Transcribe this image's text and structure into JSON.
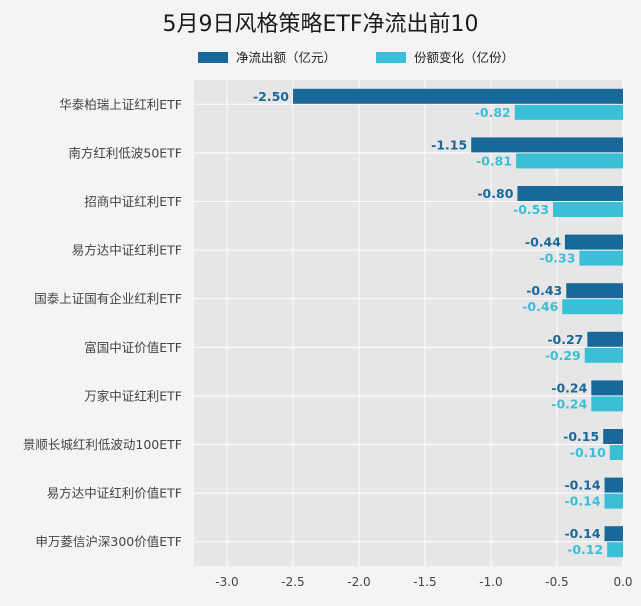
{
  "colors": {
    "net_outflow": "#18699a",
    "share_change": "#3bbfd6",
    "plot_bg": "#e6e6e6",
    "grid": "#ffffff"
  },
  "chart_data": {
    "type": "bar",
    "orientation": "horizontal",
    "title": "5月9日风格策略ETF净流出前10",
    "categories": [
      "华泰柏瑞上证红利ETF",
      "南方红利低波50ETF",
      "招商中证红利ETF",
      "易方达中证红利ETF",
      "国泰上证国有企业红利ETF",
      "富国中证价值ETF",
      "万家中证红利ETF",
      "景顺长城红利低波动100ETF",
      "易方达中证红利价值ETF",
      "申万菱信沪深300价值ETF"
    ],
    "series": [
      {
        "name": "净流出额（亿元）",
        "values": [
          -2.5,
          -1.15,
          -0.8,
          -0.44,
          -0.43,
          -0.27,
          -0.24,
          -0.15,
          -0.14,
          -0.14
        ],
        "labels": [
          "-2.50",
          "-1.15",
          "-0.80",
          "-0.44",
          "-0.43",
          "-0.27",
          "-0.24",
          "-0.15",
          "-0.14",
          "-0.14"
        ]
      },
      {
        "name": "份额变化（亿份）",
        "values": [
          -0.82,
          -0.81,
          -0.53,
          -0.33,
          -0.46,
          -0.29,
          -0.24,
          -0.1,
          -0.14,
          -0.12
        ],
        "labels": [
          "-0.82",
          "-0.81",
          "-0.53",
          "-0.33",
          "-0.46",
          "-0.29",
          "-0.24",
          "-0.10",
          "-0.14",
          "-0.12"
        ]
      }
    ],
    "x_ticks": [
      -3.0,
      -2.5,
      -2.0,
      -1.5,
      -1.0,
      -0.5,
      0.0
    ],
    "x_tick_labels": [
      "-3.0",
      "-2.5",
      "-2.0",
      "-1.5",
      "-1.0",
      "-0.5",
      "0.0"
    ],
    "xlim": [
      -3.25,
      0.0
    ],
    "xlabel": "",
    "ylabel": "",
    "grid": true,
    "legend_position": "top"
  }
}
